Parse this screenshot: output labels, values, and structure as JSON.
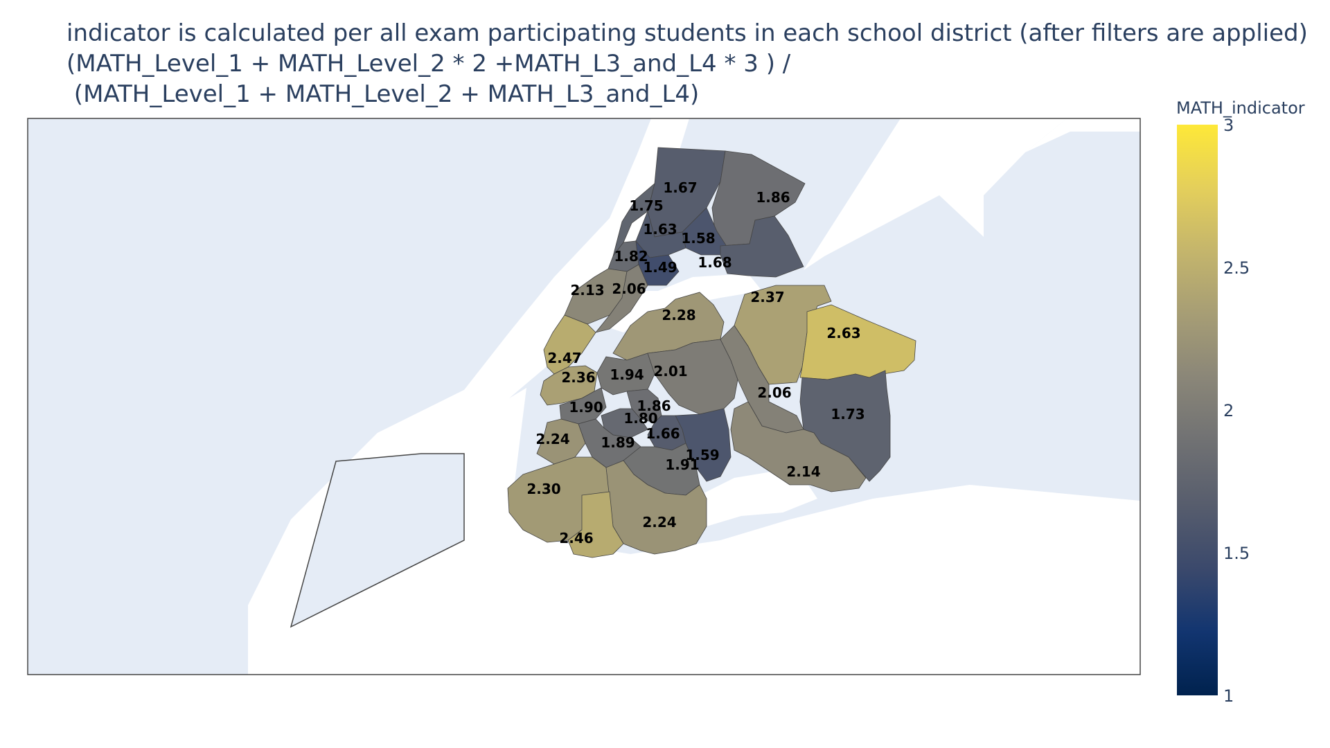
{
  "title_lines": [
    "indicator is calculated per all exam participating students in each school district (after filters are applied)",
    "(MATH_Level_1 + MATH_Level_2 * 2 +MATH_L3_and_L4 * 3 ) /",
    " (MATH_Level_1 + MATH_Level_2 + MATH_L3_and_L4)"
  ],
  "colorbar": {
    "title": "MATH_indicator",
    "min": 1,
    "max": 3,
    "ticks": [
      "1",
      "1.5",
      "2",
      "2.5",
      "3"
    ],
    "colorscale": [
      "#00224e",
      "#123570",
      "#3b496c",
      "#575d6d",
      "#707173",
      "#8a8678",
      "#a69d75",
      "#c4b56c",
      "#e4cf5b",
      "#fee838"
    ]
  },
  "colors": {
    "land": "#e5ecf6",
    "water": "#ffffff",
    "frame": "#444444",
    "label": "#000000"
  },
  "districts": [
    {
      "value": 1.67,
      "label": "1.67"
    },
    {
      "value": 1.86,
      "label": "1.86"
    },
    {
      "value": 1.75,
      "label": "1.75"
    },
    {
      "value": 1.63,
      "label": "1.63"
    },
    {
      "value": 1.58,
      "label": "1.58"
    },
    {
      "value": 1.82,
      "label": "1.82"
    },
    {
      "value": 1.49,
      "label": "1.49"
    },
    {
      "value": 1.68,
      "label": "1.68"
    },
    {
      "value": 2.13,
      "label": "2.13"
    },
    {
      "value": 2.06,
      "label": "2.06"
    },
    {
      "value": 2.37,
      "label": "2.37"
    },
    {
      "value": 2.28,
      "label": "2.28"
    },
    {
      "value": 2.63,
      "label": "2.63"
    },
    {
      "value": 2.47,
      "label": "2.47"
    },
    {
      "value": 2.36,
      "label": "2.36"
    },
    {
      "value": 1.94,
      "label": "1.94"
    },
    {
      "value": 2.01,
      "label": "2.01"
    },
    {
      "value": 2.06,
      "label": "2.06"
    },
    {
      "value": 1.73,
      "label": "1.73"
    },
    {
      "value": 1.9,
      "label": "1.90"
    },
    {
      "value": 1.86,
      "label": "1.86"
    },
    {
      "value": 1.8,
      "label": "1.80"
    },
    {
      "value": 2.24,
      "label": "2.24"
    },
    {
      "value": 1.66,
      "label": "1.66"
    },
    {
      "value": 1.89,
      "label": "1.89"
    },
    {
      "value": 1.59,
      "label": "1.59"
    },
    {
      "value": 1.91,
      "label": "1.91"
    },
    {
      "value": 2.14,
      "label": "2.14"
    },
    {
      "value": 2.3,
      "label": "2.30"
    },
    {
      "value": 2.24,
      "label": "2.24"
    },
    {
      "value": 2.46,
      "label": "2.46"
    }
  ]
}
